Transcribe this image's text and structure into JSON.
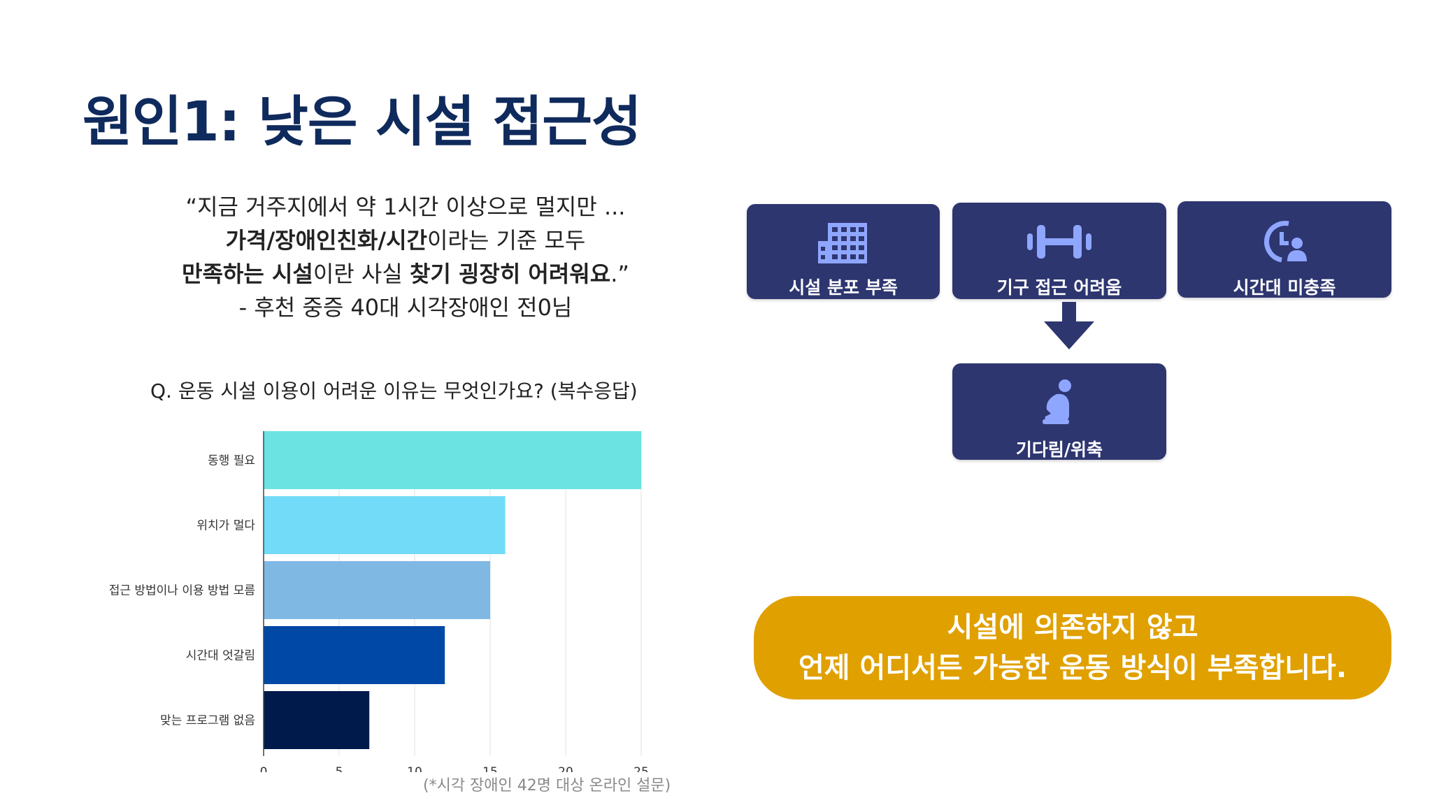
{
  "slide": {
    "title": "원인1: 낮은 시설 접근성",
    "quote": {
      "line1": "“지금 거주지에서 약 1시간 이상으로 멀지만 ...",
      "line2_bold": "가격/장애인친화/시간",
      "line2_rest": "이라는 기준 모두",
      "line3_bold1": "만족하는 시설",
      "line3_mid": "이란 사실 ",
      "line3_bold2": "찾기 굉장히 어려워요",
      "line3_end": ".”",
      "attribution": "- 후천 중증 40대 시각장애인 전0님"
    },
    "question": "Q. 운동 시설 이용이 어려운 이유는 무엇인가요? (복수응답)",
    "note": "(*시각 장애인 42명 대상 온라인 설문)"
  },
  "flow": {
    "box1": {
      "label": "시설 분포 부족",
      "icon": "building-icon"
    },
    "box2": {
      "label": "기구 접근 어려움",
      "icon": "dumbbell-icon"
    },
    "box3": {
      "label": "시간대 미충족",
      "icon": "clock-person-icon"
    },
    "box4": {
      "label": "기다림/위축",
      "icon": "crouching-person-icon"
    },
    "box_color": "#2e3670",
    "arrow_color": "#2e3670"
  },
  "conclusion": {
    "line1": "시설에 의존하지 않고",
    "line2": "언제 어디서든 가능한 운동 방식이 부족합니다.",
    "color": "#e0a000"
  },
  "chart_data": {
    "type": "bar",
    "orientation": "horizontal",
    "categories": [
      "동행 필요",
      "위치가 멀다",
      "접근 방법이나 이용 방법 모름",
      "시간대 엇갈림",
      "맞는 프로그램 없음"
    ],
    "values": [
      25,
      16,
      15,
      12,
      7
    ],
    "colors": [
      "#6be3e3",
      "#72dcf8",
      "#80b8e4",
      "#0048a6",
      "#011a4c"
    ],
    "xlim": [
      0,
      25
    ],
    "xticks": [
      "0",
      "5",
      "10",
      "15",
      "20",
      "25"
    ],
    "grid": true
  }
}
